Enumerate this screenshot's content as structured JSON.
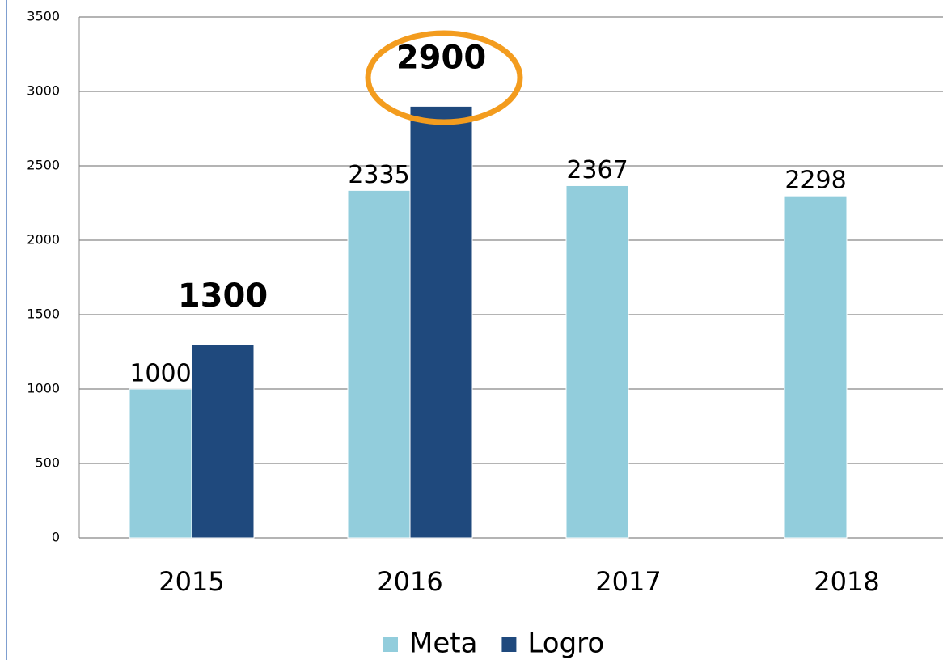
{
  "chart_data": {
    "type": "bar",
    "categories": [
      "2015",
      "2016",
      "2017",
      "2018"
    ],
    "series": [
      {
        "name": "Meta",
        "color": "#92cddc",
        "values": [
          1000,
          2335,
          2367,
          2298
        ]
      },
      {
        "name": "Logro",
        "color": "#1f497d",
        "values": [
          1300,
          2900,
          null,
          null
        ]
      }
    ],
    "ylim": [
      0,
      3500
    ],
    "yticks": [
      0,
      500,
      1000,
      1500,
      2000,
      2500,
      3000,
      3500
    ],
    "grid": true,
    "legend": "bottom"
  }
}
